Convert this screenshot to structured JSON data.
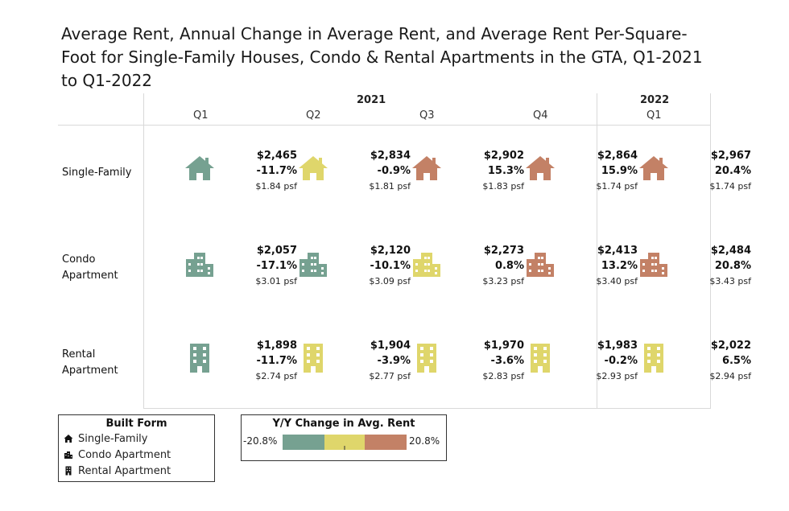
{
  "title": "Average Rent, Annual Change in Average Rent, and Average Rent Per-Square-Foot for Single-Family Houses, Condo & Rental Apartments in the GTA, Q1-2021 to Q1-2022",
  "colors": {
    "low": "#76a191",
    "mid": "#dfd66b",
    "high": "#c38166",
    "grid": "#d9d9d9"
  },
  "columns": [
    {
      "year": "2021",
      "quarter": "Q1"
    },
    {
      "year": "2021",
      "quarter": "Q2"
    },
    {
      "year": "2021",
      "quarter": "Q3"
    },
    {
      "year": "2021",
      "quarter": "Q4"
    },
    {
      "year": "2022",
      "quarter": "Q1"
    }
  ],
  "years": [
    "2021",
    "2022"
  ],
  "rows": [
    {
      "label": "Single-Family",
      "icon": "house-icon"
    },
    {
      "label": "Condo\nApartment",
      "icon": "condo-building-icon"
    },
    {
      "label": "Rental\nApartment",
      "icon": "rental-building-icon"
    }
  ],
  "chart_data": {
    "type": "table",
    "title": "Average Rent, Annual Change in Average Rent, and Average Rent Per-Square-Foot for Single-Family Houses, Condo & Rental Apartments in the GTA, Q1-2021 to Q1-2022",
    "categories": [
      "Q1 2021",
      "Q2 2021",
      "Q3 2021",
      "Q4 2021",
      "Q1 2022"
    ],
    "color_range": [
      -20.8,
      20.8
    ],
    "series": [
      {
        "name": "Single-Family",
        "rent": [
          "$2,465",
          "$2,834",
          "$2,902",
          "$2,864",
          "$2,967"
        ],
        "change": [
          "-11.7%",
          "-0.9%",
          "15.3%",
          "15.9%",
          "20.4%"
        ],
        "change_values": [
          -11.7,
          -0.9,
          15.3,
          15.9,
          20.4
        ],
        "psf": [
          "$1.84 psf",
          "$1.81 psf",
          "$1.83 psf",
          "$1.74 psf",
          "$1.74 psf"
        ]
      },
      {
        "name": "Condo Apartment",
        "rent": [
          "$2,057",
          "$2,120",
          "$2,273",
          "$2,413",
          "$2,484"
        ],
        "change": [
          "-17.1%",
          "-10.1%",
          "0.8%",
          "13.2%",
          "20.8%"
        ],
        "change_values": [
          -17.1,
          -10.1,
          0.8,
          13.2,
          20.8
        ],
        "psf": [
          "$3.01 psf",
          "$3.09 psf",
          "$3.23 psf",
          "$3.40 psf",
          "$3.43 psf"
        ]
      },
      {
        "name": "Rental Apartment",
        "rent": [
          "$1,898",
          "$1,904",
          "$1,970",
          "$1,983",
          "$2,022"
        ],
        "change": [
          "-11.7%",
          "-3.9%",
          "-3.6%",
          "-0.2%",
          "6.5%"
        ],
        "change_values": [
          -11.7,
          -3.9,
          -3.6,
          -0.2,
          6.5
        ],
        "psf": [
          "$2.74 psf",
          "$2.77 psf",
          "$2.83 psf",
          "$2.93 psf",
          "$2.94 psf"
        ]
      }
    ]
  },
  "legend_form": {
    "title": "Built Form",
    "items": [
      {
        "label": "Single-Family",
        "icon": "house-icon"
      },
      {
        "label": "Condo Apartment",
        "icon": "condo-building-icon"
      },
      {
        "label": "Rental Apartment",
        "icon": "rental-building-icon"
      }
    ]
  },
  "legend_color": {
    "title": "Y/Y Change in Avg. Rent",
    "min_label": "-20.8%",
    "max_label": "20.8%"
  }
}
